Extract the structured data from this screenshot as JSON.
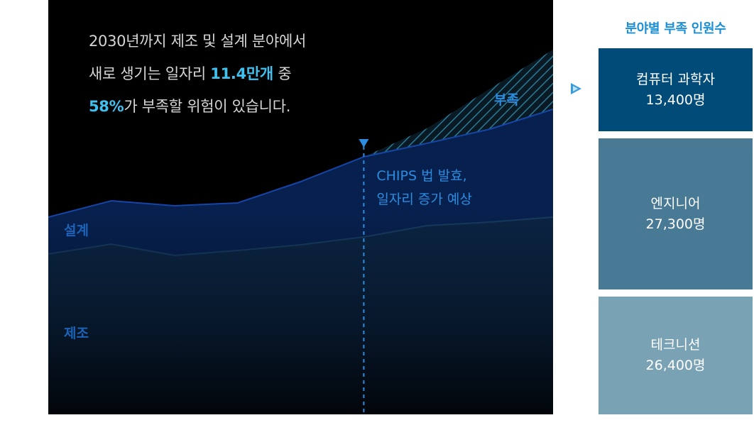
{
  "headline": {
    "line1": "2030년까지 제조 및 설계 분야에서",
    "line2_pre": "새로 생기는 일자리 ",
    "line2_highlight": "11.4만개",
    "line2_post": " 중",
    "line3_highlight": "58%",
    "line3_post": "가 부족할 위험이 있습니다."
  },
  "chart_data": {
    "type": "area",
    "stacked": true,
    "x": [
      0,
      1,
      2,
      3,
      4,
      5,
      6,
      7,
      8
    ],
    "series": [
      {
        "name": "제조",
        "role": "base",
        "values": [
          226,
          240,
          224,
          231,
          239,
          250,
          266,
          271,
          278
        ]
      },
      {
        "name": "설계",
        "role": "middle",
        "values": [
          52,
          61,
          70,
          67,
          89,
          113,
          116,
          131,
          152
        ]
      },
      {
        "name": "부족",
        "role": "shortage",
        "values": [
          0,
          0,
          0,
          0,
          0,
          0,
          21,
          57,
          84
        ]
      }
    ],
    "annotation": {
      "x": 5,
      "line1": "CHIPS 법 발효,",
      "line2": "일자리 증가 예상"
    },
    "colors": {
      "base": "#0d2a4e",
      "middle": "#0c3a8c",
      "shortage_stripe": "#2a7a96",
      "label": "#1c63b8",
      "annotation": "#2b8ce0",
      "shortage_label": "#2b8ce0"
    }
  },
  "breakdown": {
    "title": "분야별 부족 인원수",
    "items": [
      {
        "label": "컴퓨터 과학자",
        "value": "13,400명",
        "count": 13400,
        "color": "#004b78"
      },
      {
        "label": "엔지니어",
        "value": "27,300명",
        "count": 27300,
        "color": "#487995"
      },
      {
        "label": "테크니션",
        "value": "26,400명",
        "count": 26400,
        "color": "#7aa2b5"
      }
    ],
    "arrow_color": "#3b9bd8"
  }
}
